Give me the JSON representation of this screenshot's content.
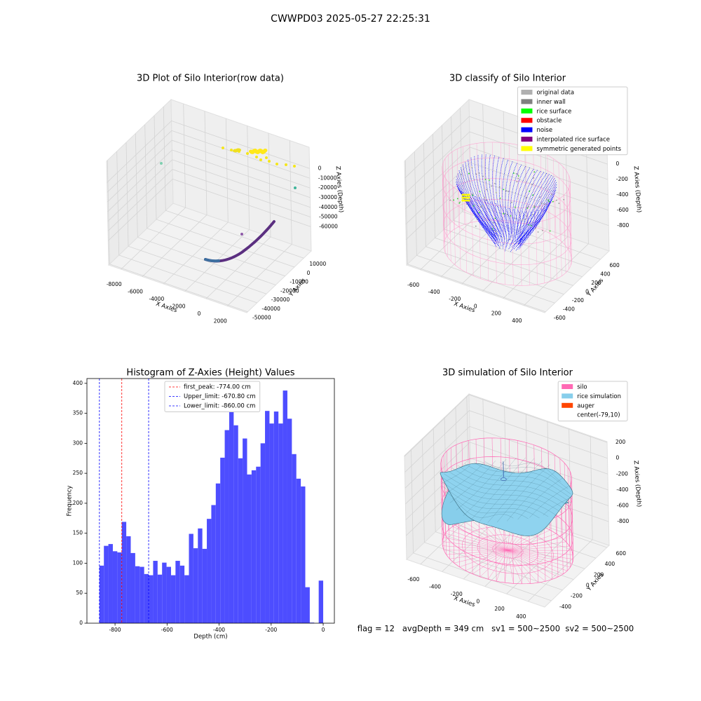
{
  "title": "CWWPD03 2025-05-27 22:25:31",
  "chart_data": [
    {
      "type": "scatter3d",
      "title": "3D Plot of Silo Interior(row data)",
      "xlabel": "X Axies",
      "ylabel": "Y Axies",
      "zlabel": "Z Axies (Depth)",
      "xlim": [
        -9170,
        3830
      ],
      "ylim": [
        -51000,
        18000
      ],
      "zlim": [
        -85000,
        22000
      ],
      "xticks": [
        -8000,
        -6000,
        -4000,
        -2000,
        0,
        2000
      ],
      "yticks": [
        -50000,
        -40000,
        -30000,
        -20000,
        -10000,
        0,
        10000
      ],
      "zticks": [
        -60000,
        -50000,
        -40000,
        -30000,
        -20000,
        -10000,
        0
      ]
    },
    {
      "type": "scatter3d",
      "title": "3D classify of Silo Interior",
      "xlabel": "X Axies",
      "ylabel": "Y Axies",
      "zlabel": "Z Axies (Depth)",
      "xlim": [
        -733,
        600
      ],
      "ylim": [
        -620,
        790
      ],
      "zlim": [
        -1130,
        220
      ],
      "xticks": [
        -600,
        -400,
        -200,
        0,
        200,
        400
      ],
      "yticks": [
        -600,
        -400,
        -200,
        0,
        200,
        400,
        600
      ],
      "zticks": [
        -800,
        -600,
        -400,
        -200,
        0
      ],
      "legend": [
        {
          "name": "original data",
          "color": "#b0b0b0"
        },
        {
          "name": "inner wall",
          "color": "#808080"
        },
        {
          "name": "rice surface",
          "color": "#00ff00"
        },
        {
          "name": "obstacle",
          "color": "#ff0000"
        },
        {
          "name": "noise",
          "color": "#0000ff"
        },
        {
          "name": "interpolated rice surface",
          "color": "#800080"
        },
        {
          "name": "symmetric generated points",
          "color": "#ffff00"
        }
      ]
    },
    {
      "type": "histogram",
      "title": "Histogram of Z-Axies (Height) Values",
      "xlabel": "Depth (cm)",
      "ylabel": "Frequency",
      "color": "#4d4dff",
      "bins": [
        -860,
        -842.8,
        -825.6,
        -808.4,
        -791.2,
        -774,
        -756.8,
        -739.6,
        -722.4,
        -705.2,
        -688,
        -670.8,
        -653.6,
        -636.4,
        -619.2,
        -602,
        -584.8,
        -567.6,
        -550.4,
        -533.2,
        -516,
        -498.8,
        -481.6,
        -464.4,
        -447.2,
        -430,
        -412.8,
        -395.6,
        -378.4,
        -361.2,
        -344,
        -326.8,
        -309.6,
        -292.4,
        -275.2,
        -258,
        -240.8,
        -223.6,
        -206.4,
        -189.2,
        -172,
        -154.8,
        -137.6,
        -120.4,
        -103.2,
        -86,
        -68.8,
        -51.6,
        -34.4,
        -17.2,
        0
      ],
      "values": [
        96,
        129,
        132,
        120,
        118,
        169,
        145,
        117,
        95,
        94,
        82,
        80,
        104,
        81,
        101,
        94,
        80,
        104,
        96,
        80,
        149,
        125,
        158,
        124,
        174,
        197,
        233,
        276,
        322,
        365,
        330,
        275,
        308,
        248,
        255,
        261,
        300,
        354,
        333,
        353,
        333,
        388,
        341,
        282,
        241,
        228,
        60,
        1,
        0,
        71
      ],
      "xlim": [
        -908,
        43
      ],
      "ylim": [
        0,
        408
      ],
      "xticks": [
        -800,
        -600,
        -400,
        -200,
        0
      ],
      "yticks": [
        0,
        50,
        100,
        150,
        200,
        250,
        300,
        350,
        400
      ],
      "vlines": [
        {
          "name": "first_peak: -774.00 cm",
          "value": -774,
          "color": "#ff0000"
        },
        {
          "name": "Upper_limit: -670.80 cm",
          "value": -670.8,
          "color": "#0000ff"
        },
        {
          "name": "Lower_limit: -860.00 cm",
          "value": -860,
          "color": "#0000ff"
        }
      ]
    },
    {
      "type": "surface3d",
      "title": "3D simulation of Silo Interior",
      "xlabel": "X Axies",
      "ylabel": "Y Axies",
      "zlabel": "Z Axies (Depth)",
      "xlim": [
        -730,
        555
      ],
      "ylim": [
        -520,
        640
      ],
      "zlim": [
        -1100,
        210
      ],
      "xticks": [
        -600,
        -400,
        -200,
        0,
        200,
        400
      ],
      "yticks": [
        -400,
        -200,
        0,
        200,
        400,
        600
      ],
      "zticks": [
        -800,
        -600,
        -400,
        -200,
        0,
        200
      ],
      "legend": [
        {
          "name": "silo",
          "color": "#ff69b4"
        },
        {
          "name": "rice simulation",
          "color": "#87ceeb"
        },
        {
          "name": "auger",
          "color": "#ff4500"
        },
        {
          "name": "center(-79,10)",
          "color": "#ffffff"
        }
      ]
    }
  ],
  "status": "flag = 12   avgDepth = 349 cm   sv1 = 500~2500  sv2 = 500~2500"
}
